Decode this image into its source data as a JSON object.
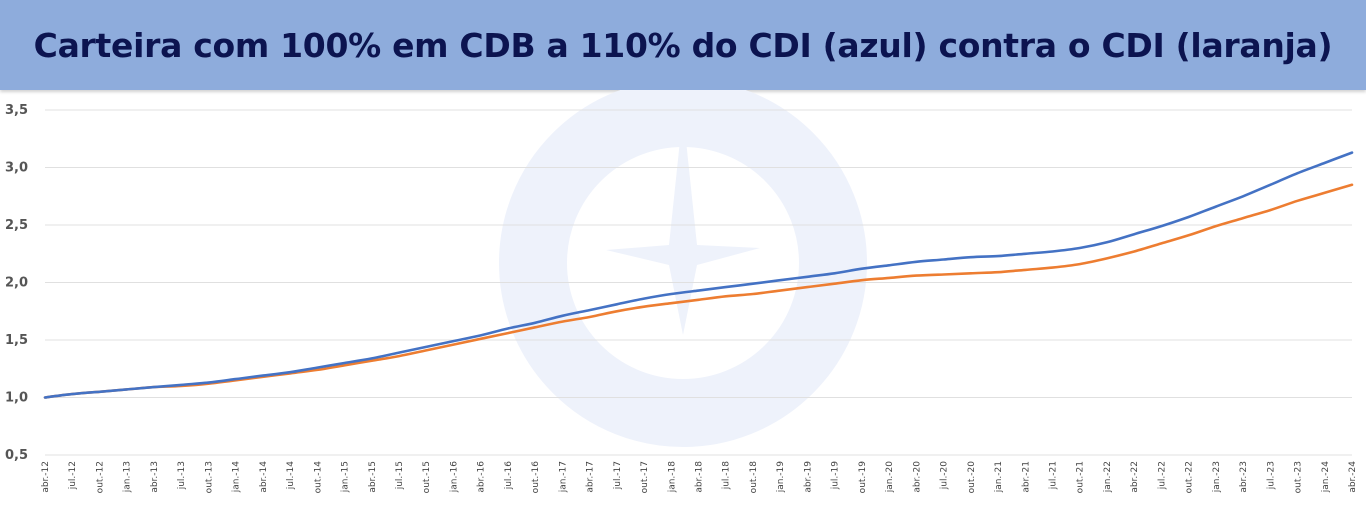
{
  "header": {
    "title": "Carteira com 100% em CDB a 110% do CDI (azul) contra o CDI (laranja)"
  },
  "colors": {
    "header_bg": "#8eacdc",
    "title_text": "#0c1450",
    "series_cdb": "#4472c4",
    "series_cdi": "#ed7d31",
    "grid": "#e0e0e0"
  },
  "chart_data": {
    "type": "line",
    "title": "Carteira com 100% em CDB a 110% do CDI (azul) contra o CDI (laranja)",
    "xlabel": "",
    "ylabel": "",
    "ylim": [
      0.5,
      3.5
    ],
    "yticks": [
      "0,5",
      "1,0",
      "1,5",
      "2,0",
      "2,5",
      "3,0",
      "3,5"
    ],
    "grid": true,
    "legend": "none",
    "categories": [
      "abr.-12",
      "jul.-12",
      "out.-12",
      "jan.-13",
      "abr.-13",
      "jul.-13",
      "out.-13",
      "jan.-14",
      "abr.-14",
      "jul.-14",
      "out.-14",
      "jan.-15",
      "abr.-15",
      "jul.-15",
      "out.-15",
      "jan.-16",
      "abr.-16",
      "jul.-16",
      "out.-16",
      "jan.-17",
      "abr.-17",
      "jul.-17",
      "out.-17",
      "jan.-18",
      "abr.-18",
      "jul.-18",
      "out.-18",
      "jan.-19",
      "abr.-19",
      "jul.-19",
      "out.-19",
      "jan.-20",
      "abr.-20",
      "jul.-20",
      "out.-20",
      "jan.-21",
      "abr.-21",
      "jul.-21",
      "out.-21",
      "jan.-22",
      "abr.-22",
      "jul.-22",
      "out.-22",
      "jan.-23",
      "abr.-23",
      "jul.-23",
      "out.-23",
      "jan.-24",
      "abr.-24"
    ],
    "series": [
      {
        "color": "#4472c4",
        "values": [
          1.0,
          1.03,
          1.05,
          1.07,
          1.09,
          1.11,
          1.13,
          1.16,
          1.19,
          1.22,
          1.26,
          1.3,
          1.34,
          1.39,
          1.44,
          1.49,
          1.54,
          1.6,
          1.65,
          1.71,
          1.76,
          1.81,
          1.86,
          1.9,
          1.93,
          1.96,
          1.99,
          2.02,
          2.05,
          2.08,
          2.12,
          2.15,
          2.18,
          2.2,
          2.22,
          2.23,
          2.25,
          2.27,
          2.3,
          2.35,
          2.42,
          2.49,
          2.57,
          2.66,
          2.75,
          2.85,
          2.95,
          3.04,
          3.13
        ]
      },
      {
        "color": "#ed7d31",
        "values": [
          1.0,
          1.03,
          1.05,
          1.07,
          1.09,
          1.1,
          1.12,
          1.15,
          1.18,
          1.21,
          1.24,
          1.28,
          1.32,
          1.36,
          1.41,
          1.46,
          1.51,
          1.56,
          1.61,
          1.66,
          1.7,
          1.75,
          1.79,
          1.82,
          1.85,
          1.88,
          1.9,
          1.93,
          1.96,
          1.99,
          2.02,
          2.04,
          2.06,
          2.07,
          2.08,
          2.09,
          2.11,
          2.13,
          2.16,
          2.21,
          2.27,
          2.34,
          2.41,
          2.49,
          2.56,
          2.63,
          2.71,
          2.78,
          2.85
        ]
      }
    ]
  }
}
